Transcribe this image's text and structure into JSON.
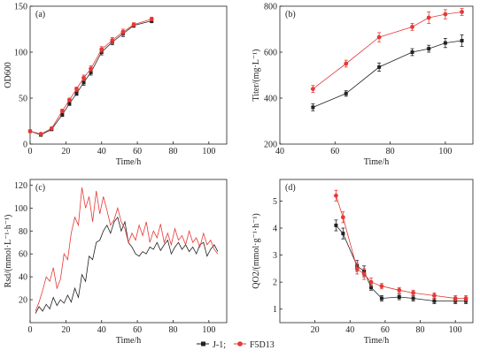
{
  "legend": {
    "items": [
      {
        "name": "J-1;",
        "color": "#222222",
        "marker": "square"
      },
      {
        "name": "F5D13",
        "color": "#e53935",
        "marker": "circle"
      }
    ]
  },
  "chart_data": [
    {
      "type": "line",
      "panel": "(a)",
      "title": "",
      "xlabel": "Time/h",
      "ylabel": "OD600",
      "xlim": [
        0,
        110
      ],
      "ylim": [
        0,
        150
      ],
      "xticks": [
        0,
        20,
        40,
        60,
        80,
        100
      ],
      "yticks": [
        0,
        50,
        100,
        150
      ],
      "series": [
        {
          "name": "J-1",
          "x": [
            0,
            6,
            12,
            18,
            22,
            26,
            30,
            34,
            40,
            46,
            52,
            58,
            68
          ],
          "y": [
            14,
            10,
            16,
            32,
            44,
            55,
            67,
            78,
            100,
            111,
            120,
            129,
            134
          ],
          "err": [
            1,
            1,
            1,
            2,
            2,
            2,
            3,
            3,
            3,
            3,
            3,
            2,
            2
          ]
        },
        {
          "name": "F5D13",
          "x": [
            0,
            6,
            12,
            18,
            22,
            26,
            30,
            34,
            40,
            46,
            52,
            58,
            68
          ],
          "y": [
            14,
            11,
            17,
            36,
            48,
            60,
            72,
            82,
            103,
            113,
            122,
            130,
            136
          ],
          "err": [
            1,
            1,
            1,
            2,
            2,
            2,
            3,
            3,
            3,
            3,
            3,
            2,
            2
          ]
        }
      ]
    },
    {
      "type": "line",
      "panel": "(b)",
      "title": "",
      "xlabel": "Time/h",
      "ylabel": "Titer/(mg·L⁻¹)",
      "xlim": [
        40,
        110
      ],
      "ylim": [
        200,
        800
      ],
      "xticks": [
        40,
        60,
        80,
        100
      ],
      "yticks": [
        200,
        400,
        600,
        800
      ],
      "series": [
        {
          "name": "J-1",
          "x": [
            52,
            64,
            76,
            88,
            94,
            100,
            106
          ],
          "y": [
            360,
            420,
            535,
            600,
            615,
            640,
            650
          ],
          "err": [
            15,
            12,
            18,
            15,
            15,
            20,
            25
          ]
        },
        {
          "name": "F5D13",
          "x": [
            52,
            64,
            76,
            88,
            94,
            100,
            106
          ],
          "y": [
            440,
            550,
            665,
            710,
            750,
            765,
            775
          ],
          "err": [
            15,
            15,
            20,
            15,
            25,
            20,
            15
          ]
        }
      ]
    },
    {
      "type": "line",
      "panel": "(c)",
      "title": "",
      "xlabel": "Time/h",
      "ylabel": "Rsd/(mmol·L⁻¹·h⁻¹)",
      "xlim": [
        0,
        110
      ],
      "ylim": [
        0,
        125
      ],
      "xticks": [
        0,
        20,
        40,
        60,
        80,
        100
      ],
      "yticks": [
        20,
        40,
        60,
        80,
        100,
        120
      ],
      "series": [
        {
          "name": "J-1",
          "x": [
            3,
            5,
            7,
            9,
            11,
            13,
            15,
            17,
            19,
            21,
            23,
            25,
            27,
            29,
            31,
            33,
            35,
            37,
            39,
            41,
            43,
            45,
            47,
            49,
            51,
            53,
            55,
            57,
            59,
            61,
            63,
            65,
            67,
            69,
            71,
            73,
            75,
            77,
            79,
            81,
            83,
            85,
            87,
            89,
            91,
            93,
            95,
            97,
            99,
            101,
            103,
            105
          ],
          "y": [
            8,
            14,
            10,
            16,
            12,
            22,
            15,
            20,
            17,
            24,
            18,
            30,
            22,
            42,
            36,
            58,
            55,
            70,
            72,
            80,
            85,
            78,
            88,
            92,
            80,
            88,
            70,
            66,
            60,
            58,
            62,
            60,
            66,
            64,
            70,
            63,
            68,
            72,
            60,
            66,
            70,
            64,
            68,
            62,
            66,
            60,
            68,
            70,
            58,
            64,
            68,
            62
          ]
        },
        {
          "name": "F5D13",
          "x": [
            3,
            5,
            7,
            9,
            11,
            13,
            15,
            17,
            19,
            21,
            23,
            25,
            27,
            29,
            31,
            33,
            35,
            37,
            39,
            41,
            43,
            45,
            47,
            49,
            51,
            53,
            55,
            57,
            59,
            61,
            63,
            65,
            67,
            69,
            71,
            73,
            75,
            77,
            79,
            81,
            83,
            85,
            87,
            89,
            91,
            93,
            95,
            97,
            99,
            101,
            103,
            105
          ],
          "y": [
            10,
            18,
            28,
            40,
            36,
            48,
            30,
            38,
            60,
            55,
            78,
            92,
            85,
            118,
            100,
            110,
            88,
            115,
            95,
            110,
            98,
            85,
            90,
            100,
            88,
            82,
            70,
            78,
            72,
            85,
            76,
            88,
            70,
            80,
            74,
            86,
            70,
            78,
            68,
            82,
            72,
            76,
            68,
            80,
            70,
            74,
            66,
            78,
            68,
            72,
            64,
            60
          ]
        }
      ]
    },
    {
      "type": "line",
      "panel": "(d)",
      "title": "",
      "xlabel": "Time/h",
      "ylabel": "QO2/(mmol·g⁻¹·h⁻¹)",
      "xlim": [
        0,
        110
      ],
      "ylim": [
        0.5,
        5.8
      ],
      "xticks": [
        20,
        40,
        60,
        80,
        100
      ],
      "yticks": [
        1,
        2,
        3,
        4,
        5
      ],
      "series": [
        {
          "name": "J-1",
          "x": [
            32,
            36,
            44,
            48,
            52,
            58,
            68,
            76,
            88,
            100,
            106
          ],
          "y": [
            4.1,
            3.8,
            2.6,
            2.4,
            1.8,
            1.4,
            1.45,
            1.4,
            1.3,
            1.3,
            1.3
          ],
          "err": [
            0.2,
            0.2,
            0.2,
            0.2,
            0.1,
            0.1,
            0.1,
            0.1,
            0.1,
            0.1,
            0.1
          ]
        },
        {
          "name": "F5D13",
          "x": [
            32,
            36,
            44,
            48,
            52,
            58,
            68,
            76,
            88,
            100,
            106
          ],
          "y": [
            5.2,
            4.4,
            2.5,
            2.3,
            2.0,
            1.85,
            1.7,
            1.6,
            1.5,
            1.4,
            1.4
          ],
          "err": [
            0.2,
            0.2,
            0.2,
            0.2,
            0.15,
            0.1,
            0.1,
            0.1,
            0.1,
            0.1,
            0.1
          ]
        }
      ]
    }
  ]
}
